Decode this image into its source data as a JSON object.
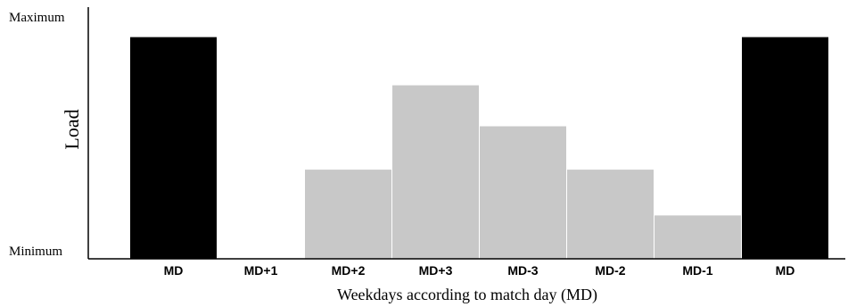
{
  "chart_data": {
    "type": "bar",
    "title": "",
    "xlabel": "Weekdays according to match day (MD)",
    "ylabel": "Load",
    "y_tick_labels": {
      "top": "Maximum",
      "bottom": "Minimum"
    },
    "ylim": [
      0,
      100
    ],
    "categories": [
      "MD",
      "MD+1",
      "MD+2",
      "MD+3",
      "MD-3",
      "MD-2",
      "MD-1",
      "MD"
    ],
    "values": [
      92,
      0,
      37,
      72,
      55,
      37,
      18,
      92
    ],
    "bar_colors": [
      "#000000",
      "#c8c8c8",
      "#c8c8c8",
      "#c8c8c8",
      "#c8c8c8",
      "#c8c8c8",
      "#c8c8c8",
      "#000000"
    ],
    "grid": false,
    "legend": "none"
  }
}
